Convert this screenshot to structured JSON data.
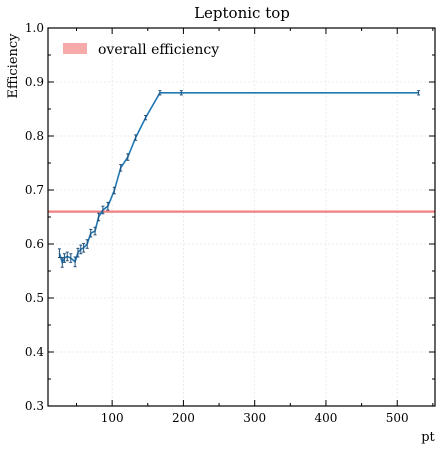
{
  "chart_data": {
    "type": "line",
    "title": "Leptonic top",
    "xlabel": "pt",
    "ylabel": "Efficiency",
    "xlim": [
      10,
      553
    ],
    "ylim": [
      0.3,
      1.0
    ],
    "xticks": [
      100,
      200,
      300,
      400,
      500
    ],
    "yticks": [
      0.3,
      0.4,
      0.5,
      0.6,
      0.7,
      0.8,
      0.9,
      1.0
    ],
    "grid": true,
    "legend_position": "top-left",
    "colors": {
      "series": "#1f77b4",
      "reference": "#f08080",
      "legend_patch": "#f7aaaa"
    },
    "reference_line": {
      "name": "overall efficiency",
      "y": 0.66
    },
    "series": [
      {
        "x": [
          26,
          30,
          33,
          37,
          42,
          48,
          52,
          56,
          60,
          65,
          70,
          76,
          81,
          87,
          94,
          103,
          112,
          122,
          133,
          147,
          167,
          197,
          530
        ],
        "y": [
          0.583,
          0.566,
          0.574,
          0.577,
          0.574,
          0.567,
          0.584,
          0.59,
          0.593,
          0.6,
          0.62,
          0.624,
          0.65,
          0.663,
          0.67,
          0.699,
          0.741,
          0.761,
          0.797,
          0.834,
          0.88,
          0.88,
          0.88
        ],
        "err": [
          0.008,
          0.009,
          0.008,
          0.008,
          0.008,
          0.009,
          0.008,
          0.008,
          0.008,
          0.008,
          0.007,
          0.007,
          0.007,
          0.007,
          0.007,
          0.006,
          0.006,
          0.006,
          0.005,
          0.004,
          0.004,
          0.004,
          0.004
        ]
      }
    ]
  }
}
